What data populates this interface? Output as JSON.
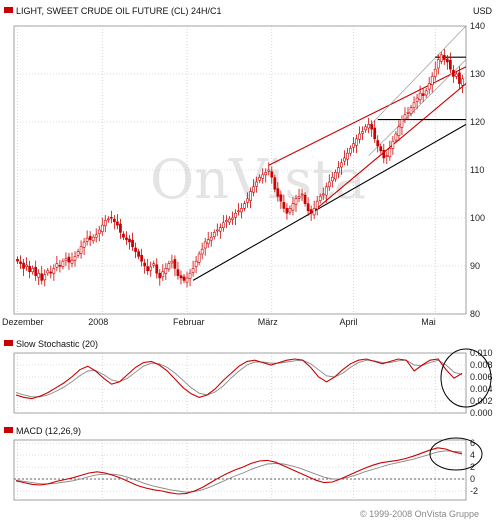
{
  "header": {
    "title": "LIGHT, SWEET CRUDE OIL FUTURE (CL) 24H/C1",
    "currency": "USD"
  },
  "watermark": "OnVista",
  "copyright": "© 1999-2008 OnVista Gruppe",
  "colors": {
    "candle_red": "#cc0000",
    "candle_white": "#ffffff",
    "trendline_black": "#000000",
    "trendline_red": "#cc0000",
    "channel_light": "#999999",
    "signal_grey": "#888888",
    "grid": "#bbbbbb",
    "ellipse": "#000000"
  },
  "chart_data": [
    {
      "type": "candlestick",
      "title": "LIGHT, SWEET CRUDE OIL FUTURE (CL) 24H/C1",
      "unit": "USD",
      "x_tick_labels": [
        "Dezember",
        "2008",
        "Februar",
        "März",
        "April",
        "Mai"
      ],
      "y_ticks": [
        80,
        90,
        100,
        110,
        120,
        130,
        140
      ],
      "ylim": [
        80,
        140
      ],
      "grid": true,
      "close_series": [
        91.0,
        90.5,
        89.5,
        90.2,
        88.8,
        89.5,
        88.0,
        88.5,
        87.0,
        88.2,
        89.0,
        88.5,
        89.5,
        90.5,
        90.0,
        91.0,
        91.5,
        90.8,
        91.2,
        92.0,
        93.0,
        94.0,
        95.0,
        95.8,
        95.5,
        96.0,
        96.5,
        97.5,
        98.5,
        99.5,
        99.8,
        100.0,
        99.2,
        98.5,
        97.0,
        96.0,
        95.5,
        95.0,
        94.0,
        93.0,
        92.0,
        91.0,
        90.0,
        89.0,
        89.8,
        90.5,
        88.5,
        87.5,
        88.8,
        89.5,
        90.5,
        91.0,
        89.5,
        88.0,
        87.5,
        87.0,
        87.5,
        88.5,
        89.5,
        91.0,
        92.5,
        93.5,
        95.0,
        95.5,
        96.0,
        97.0,
        97.5,
        98.0,
        99.0,
        99.5,
        99.8,
        100.0,
        101.0,
        101.5,
        102.0,
        103.0,
        104.0,
        105.5,
        106.5,
        107.5,
        108.5,
        109.0,
        109.5,
        110.0,
        108.5,
        106.0,
        104.5,
        103.5,
        102.0,
        101.0,
        102.0,
        103.0,
        104.0,
        104.5,
        105.0,
        103.0,
        101.5,
        101.0,
        102.0,
        103.5,
        104.5,
        105.0,
        106.5,
        107.5,
        108.5,
        109.5,
        110.5,
        111.5,
        112.5,
        113.5,
        114.5,
        115.5,
        116.5,
        117.5,
        118.0,
        119.0,
        119.5,
        118.5,
        116.5,
        115.0,
        114.0,
        112.5,
        113.0,
        114.5,
        116.0,
        117.5,
        119.0,
        120.5,
        121.5,
        122.0,
        123.0,
        124.0,
        125.0,
        126.0,
        125.5,
        126.5,
        128.0,
        129.5,
        131.0,
        133.0,
        134.0,
        133.0,
        132.5,
        131.0,
        129.5,
        130.0,
        128.0,
        129.0
      ],
      "annotations": [
        {
          "kind": "support_trendline",
          "color": "black",
          "from": {
            "i": 58,
            "y": 87
          },
          "to": {
            "i": 151,
            "y": 119.5
          }
        },
        {
          "kind": "resistance_trendline",
          "color": "red",
          "from": {
            "i": 83,
            "y": 111
          },
          "to": {
            "i": 151,
            "y": 131.5
          }
        },
        {
          "kind": "support_trendline",
          "color": "red",
          "from": {
            "i": 97,
            "y": 101
          },
          "to": {
            "i": 151,
            "y": 128
          }
        },
        {
          "kind": "channel_line",
          "color": "grey",
          "from": {
            "i": 116,
            "y": 119
          },
          "to": {
            "i": 151,
            "y": 140
          }
        },
        {
          "kind": "channel_line",
          "color": "grey",
          "from": {
            "i": 116,
            "y": 113
          },
          "to": {
            "i": 151,
            "y": 133
          }
        },
        {
          "kind": "horizontal_line",
          "color": "black",
          "y": 120.5,
          "from_i": 119,
          "to_i": 151
        },
        {
          "kind": "horizontal_line",
          "color": "black",
          "y": 133.5,
          "from_i": 138,
          "to_i": 151
        }
      ]
    },
    {
      "type": "line",
      "title": "Slow Stochastic (20)",
      "y_ticks": [
        0.0,
        0.002,
        0.004,
        0.006,
        0.008,
        0.01
      ],
      "ylim": [
        0.0,
        0.01
      ],
      "series": [
        {
          "color": "red",
          "values": [
            0.003,
            0.0026,
            0.0024,
            0.0028,
            0.0034,
            0.0042,
            0.005,
            0.006,
            0.0072,
            0.0078,
            0.007,
            0.0058,
            0.0048,
            0.0052,
            0.0064,
            0.0076,
            0.0084,
            0.0086,
            0.008,
            0.007,
            0.0056,
            0.0042,
            0.0032,
            0.0026,
            0.003,
            0.004,
            0.0054,
            0.0066,
            0.0078,
            0.0086,
            0.0088,
            0.0084,
            0.008,
            0.0084,
            0.0088,
            0.009,
            0.0088,
            0.0076,
            0.006,
            0.0052,
            0.006,
            0.0072,
            0.0082,
            0.0088,
            0.009,
            0.0086,
            0.0082,
            0.0086,
            0.009,
            0.0088,
            0.007,
            0.008,
            0.0088,
            0.009,
            0.0072,
            0.0058,
            0.0066
          ]
        },
        {
          "color": "grey",
          "values": [
            0.0034,
            0.003,
            0.0027,
            0.0027,
            0.003,
            0.0036,
            0.0043,
            0.0052,
            0.0062,
            0.007,
            0.0071,
            0.0064,
            0.0055,
            0.0052,
            0.0058,
            0.0068,
            0.0078,
            0.0083,
            0.0082,
            0.0076,
            0.0066,
            0.0054,
            0.0042,
            0.0033,
            0.003,
            0.0035,
            0.0045,
            0.0058,
            0.007,
            0.008,
            0.0085,
            0.0085,
            0.0083,
            0.0083,
            0.0085,
            0.0087,
            0.0088,
            0.0082,
            0.0072,
            0.0062,
            0.006,
            0.0066,
            0.0076,
            0.0084,
            0.0088,
            0.0087,
            0.0084,
            0.0084,
            0.0087,
            0.0088,
            0.008,
            0.0079,
            0.0084,
            0.0088,
            0.008,
            0.0068,
            0.0064
          ]
        }
      ]
    },
    {
      "type": "line",
      "title": "MACD (12,26,9)",
      "y_ticks": [
        -2,
        0,
        2,
        4,
        6
      ],
      "ylim": [
        -3.5,
        6.5
      ],
      "series": [
        {
          "color": "red",
          "values": [
            -0.3,
            -0.6,
            -0.9,
            -1.0,
            -0.8,
            -0.4,
            -0.1,
            0.2,
            0.6,
            1.0,
            1.2,
            1.0,
            0.6,
            0.1,
            -0.5,
            -1.1,
            -1.5,
            -1.8,
            -2.0,
            -2.3,
            -2.5,
            -2.4,
            -2.0,
            -1.4,
            -0.6,
            0.2,
            0.9,
            1.5,
            2.0,
            2.6,
            3.0,
            3.1,
            2.8,
            2.2,
            1.6,
            1.0,
            0.4,
            -0.2,
            -0.6,
            -0.5,
            0.0,
            0.6,
            1.2,
            1.8,
            2.3,
            2.7,
            2.9,
            3.1,
            3.4,
            3.8,
            4.3,
            4.8,
            5.2,
            5.0,
            4.5,
            4.2
          ]
        },
        {
          "color": "grey",
          "values": [
            -0.2,
            -0.4,
            -0.6,
            -0.8,
            -0.8,
            -0.7,
            -0.5,
            -0.3,
            0.0,
            0.4,
            0.7,
            0.8,
            0.8,
            0.6,
            0.2,
            -0.3,
            -0.8,
            -1.2,
            -1.5,
            -1.8,
            -2.0,
            -2.2,
            -2.1,
            -1.8,
            -1.3,
            -0.7,
            -0.1,
            0.5,
            1.0,
            1.6,
            2.1,
            2.5,
            2.6,
            2.5,
            2.2,
            1.8,
            1.3,
            0.8,
            0.3,
            0.0,
            0.0,
            0.3,
            0.7,
            1.2,
            1.6,
            2.0,
            2.4,
            2.7,
            3.0,
            3.3,
            3.7,
            4.1,
            4.5,
            4.7,
            4.6,
            4.5
          ]
        }
      ]
    }
  ]
}
